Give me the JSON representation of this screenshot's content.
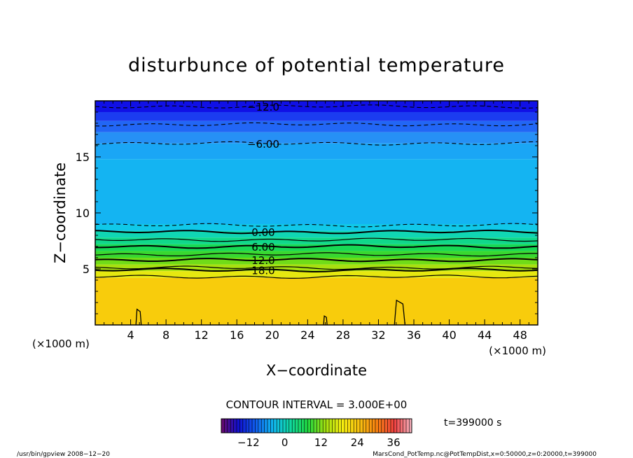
{
  "chart_data": {
    "type": "heatmap",
    "title": "disturbunce of potential temperature",
    "xlabel": "X−coordinate",
    "ylabel": "Z−coordinate",
    "x_unit_left": "(×1000 m)",
    "x_unit_right": "(×1000 m)",
    "xlim": [
      0,
      50
    ],
    "ylim": [
      0,
      20
    ],
    "x_ticks": [
      4,
      8,
      12,
      16,
      20,
      24,
      28,
      32,
      36,
      40,
      44,
      48
    ],
    "y_ticks": [
      5,
      10,
      15
    ],
    "contour_interval": "CONTOUR INTERVAL = 3.000E+00",
    "contours": [
      {
        "level": -12,
        "label": "−12.0",
        "z": 19.5,
        "style": "dashed"
      },
      {
        "level": -9,
        "label": "",
        "z": 17.9,
        "style": "dashed"
      },
      {
        "level": -6,
        "label": "−6.00",
        "z": 16.2,
        "style": "dashed"
      },
      {
        "level": -3,
        "label": "",
        "z": 8.9,
        "style": "dashed"
      },
      {
        "level": 0,
        "label": "0.00",
        "z": 8.3,
        "style": "solid"
      },
      {
        "level": 3,
        "label": "",
        "z": 7.6,
        "style": "solid"
      },
      {
        "level": 6,
        "label": "6.00",
        "z": 7.0,
        "style": "solid"
      },
      {
        "level": 9,
        "label": "",
        "z": 6.3,
        "style": "solid"
      },
      {
        "level": 12,
        "label": "12.0",
        "z": 5.8,
        "style": "solid"
      },
      {
        "level": 15,
        "label": "",
        "z": 5.1,
        "style": "solid"
      },
      {
        "level": 18,
        "label": "18.0",
        "z": 4.9,
        "style": "solid"
      },
      {
        "level": 21,
        "label": "",
        "z": 4.3,
        "style": "solid"
      }
    ],
    "field_bands": [
      {
        "z0": 19.0,
        "z1": 20.0,
        "color": "#1010e6"
      },
      {
        "z0": 18.2,
        "z1": 19.0,
        "color": "#1b3cf0"
      },
      {
        "z0": 17.2,
        "z1": 18.2,
        "color": "#2266f5"
      },
      {
        "z0": 16.2,
        "z1": 17.2,
        "color": "#2690f5"
      },
      {
        "z0": 14.8,
        "z1": 16.2,
        "color": "#1aa6f5"
      },
      {
        "z0": 9.0,
        "z1": 14.8,
        "color": "#14b4f2"
      },
      {
        "z0": 8.4,
        "z1": 9.0,
        "color": "#10c8e8"
      },
      {
        "z0": 7.8,
        "z1": 8.4,
        "color": "#10d6b4"
      },
      {
        "z0": 7.2,
        "z1": 7.8,
        "color": "#10d88a"
      },
      {
        "z0": 6.6,
        "z1": 7.2,
        "color": "#18d854"
      },
      {
        "z0": 6.0,
        "z1": 6.6,
        "color": "#38d830"
      },
      {
        "z0": 5.4,
        "z1": 6.0,
        "color": "#70dc18"
      },
      {
        "z0": 4.8,
        "z1": 5.4,
        "color": "#a8e010"
      },
      {
        "z0": 4.2,
        "z1": 4.8,
        "color": "#e6e810"
      },
      {
        "z0": 0.0,
        "z1": 4.2,
        "color": "#f8cc0c"
      }
    ],
    "colorbar": {
      "ticks": [
        -12,
        0,
        12,
        24,
        36
      ],
      "tick_labels": [
        "−12",
        "0",
        "12",
        "24",
        "36"
      ],
      "range": [
        -21,
        42
      ],
      "stops": [
        "#6a0a6a",
        "#1010d0",
        "#1060f0",
        "#10b8f0",
        "#10d8a0",
        "#20d840",
        "#a0e010",
        "#f8f010",
        "#f8c010",
        "#f88010",
        "#f04040",
        "#f4b4c0"
      ]
    },
    "time_label": "t=399000 s",
    "footer_left": "/usr/bin/gpview  2008−12−20",
    "footer_right": "MarsCond_PotTemp.nc@PotTempDist,x=0:50000,z=0:20000,t=399000"
  }
}
